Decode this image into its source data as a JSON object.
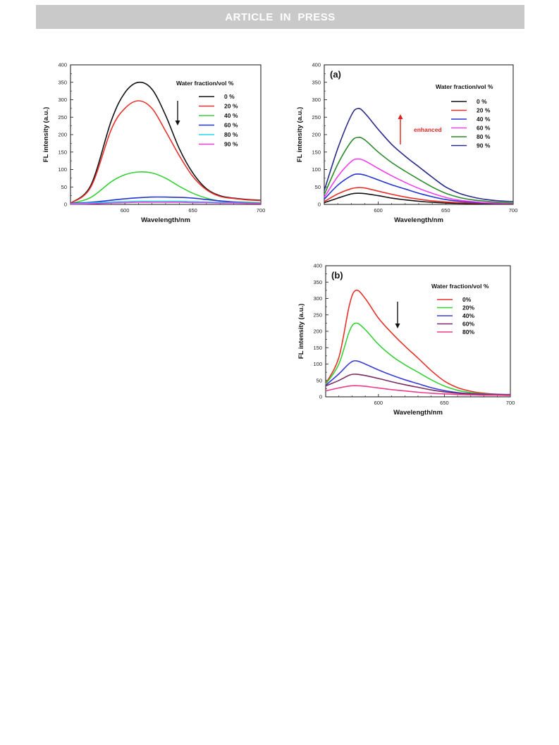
{
  "header": {
    "banner_text": "ARTICLE  IN  PRESS"
  },
  "chart_data": [
    {
      "type": "line",
      "panel_label": "",
      "xlabel": "Wavelength/nm",
      "ylabel": "FL intensity (a.u.)",
      "xlim": [
        560,
        700
      ],
      "ylim": [
        0,
        400
      ],
      "xticks": [
        600,
        650,
        700
      ],
      "yticks": [
        0,
        50,
        100,
        150,
        200,
        250,
        300,
        350,
        400
      ],
      "legend_title": "Water fraction/vol %",
      "legend_position": "top-right",
      "trend_arrow": "down",
      "annotation": "",
      "x": [
        560,
        575,
        590,
        600,
        610,
        620,
        630,
        640,
        650,
        660,
        670,
        680,
        690,
        700
      ],
      "series": [
        {
          "name": "0 %",
          "color": "#111111",
          "values": [
            3,
            55,
            240,
            320,
            350,
            330,
            255,
            160,
            90,
            45,
            25,
            18,
            14,
            12
          ]
        },
        {
          "name": "20 %",
          "color": "#e8302a",
          "values": [
            3,
            50,
            215,
            275,
            297,
            275,
            210,
            140,
            80,
            42,
            23,
            17,
            13,
            11
          ]
        },
        {
          "name": "40 %",
          "color": "#35d135",
          "values": [
            2,
            20,
            65,
            85,
            93,
            90,
            75,
            52,
            32,
            18,
            10,
            7,
            6,
            5
          ]
        },
        {
          "name": "60 %",
          "color": "#2233d0",
          "values": [
            3,
            6,
            12,
            16,
            19,
            21,
            21,
            20,
            18,
            14,
            10,
            7,
            5,
            4
          ]
        },
        {
          "name": "80 %",
          "color": "#22d8e8",
          "values": [
            2,
            4,
            7,
            8,
            9,
            9,
            9,
            9,
            8,
            7,
            6,
            5,
            4,
            4
          ]
        },
        {
          "name": "90 %",
          "color": "#e83ee0",
          "values": [
            1,
            2,
            4,
            5,
            6,
            6,
            6,
            6,
            5,
            5,
            4,
            4,
            3,
            3
          ]
        }
      ]
    },
    {
      "type": "line",
      "panel_label": "(a)",
      "xlabel": "Wavelength/nm",
      "ylabel": "FL intensity (a.u.)",
      "xlim": [
        560,
        700
      ],
      "ylim": [
        0,
        400
      ],
      "xticks": [
        600,
        650,
        700
      ],
      "yticks": [
        0,
        50,
        100,
        150,
        200,
        250,
        300,
        350,
        400
      ],
      "legend_title": "Water fraction/vol %",
      "legend_position": "top-right",
      "trend_arrow": "up",
      "annotation": "enhanced",
      "x": [
        560,
        570,
        580,
        585,
        590,
        600,
        610,
        620,
        630,
        640,
        650,
        660,
        670,
        680,
        690,
        700
      ],
      "series": [
        {
          "name": "0 %",
          "color": "#111111",
          "values": [
            5,
            18,
            30,
            32,
            31,
            25,
            18,
            13,
            9,
            6,
            4,
            3,
            2,
            2,
            1,
            1
          ]
        },
        {
          "name": "20 %",
          "color": "#e8302a",
          "values": [
            8,
            30,
            45,
            48,
            47,
            38,
            29,
            21,
            15,
            10,
            7,
            5,
            4,
            3,
            2,
            2
          ]
        },
        {
          "name": "40 %",
          "color": "#2233d0",
          "values": [
            15,
            55,
            82,
            87,
            84,
            70,
            56,
            44,
            32,
            22,
            14,
            9,
            6,
            4,
            3,
            3
          ]
        },
        {
          "name": "60 %",
          "color": "#f040f0",
          "values": [
            20,
            80,
            123,
            130,
            125,
            103,
            82,
            63,
            46,
            32,
            20,
            12,
            8,
            5,
            4,
            3
          ]
        },
        {
          "name": "80 %",
          "color": "#2a8a2a",
          "values": [
            28,
            115,
            180,
            192,
            185,
            150,
            120,
            95,
            72,
            50,
            32,
            20,
            13,
            9,
            6,
            4
          ]
        },
        {
          "name": "90 %",
          "color": "#2a2a88",
          "values": [
            40,
            160,
            255,
            275,
            262,
            215,
            172,
            138,
            108,
            78,
            50,
            32,
            21,
            14,
            10,
            8
          ]
        }
      ]
    },
    {
      "type": "line",
      "panel_label": "(b)",
      "xlabel": "Wavelength/nm",
      "ylabel": "FL intensity (a.u.)",
      "xlim": [
        560,
        700
      ],
      "ylim": [
        0,
        400
      ],
      "xticks": [
        600,
        650,
        700
      ],
      "yticks": [
        0,
        50,
        100,
        150,
        200,
        250,
        300,
        350,
        400
      ],
      "legend_title": "Water fraction/vol %",
      "legend_position": "top-right",
      "trend_arrow": "down",
      "annotation": "",
      "x": [
        560,
        570,
        578,
        583,
        590,
        600,
        610,
        620,
        630,
        640,
        650,
        660,
        670,
        680,
        690,
        700
      ],
      "series": [
        {
          "name": "0%",
          "color": "#e8302a",
          "values": [
            40,
            120,
            280,
            325,
            300,
            240,
            195,
            155,
            118,
            80,
            48,
            28,
            17,
            11,
            8,
            7
          ]
        },
        {
          "name": "20%",
          "color": "#35d135",
          "values": [
            38,
            100,
            200,
            225,
            205,
            160,
            125,
            98,
            75,
            52,
            33,
            20,
            13,
            9,
            7,
            6
          ]
        },
        {
          "name": "40%",
          "color": "#3a3ad8",
          "values": [
            35,
            70,
            102,
            110,
            100,
            82,
            66,
            52,
            40,
            28,
            19,
            13,
            10,
            8,
            7,
            6
          ]
        },
        {
          "name": "60%",
          "color": "#7a2a62",
          "values": [
            33,
            50,
            66,
            69,
            65,
            56,
            46,
            37,
            29,
            21,
            15,
            11,
            9,
            7,
            6,
            5
          ]
        },
        {
          "name": "80%",
          "color": "#ee3a8a",
          "values": [
            18,
            27,
            33,
            34,
            32,
            27,
            22,
            18,
            14,
            11,
            9,
            7,
            6,
            5,
            5,
            4
          ]
        }
      ]
    }
  ]
}
